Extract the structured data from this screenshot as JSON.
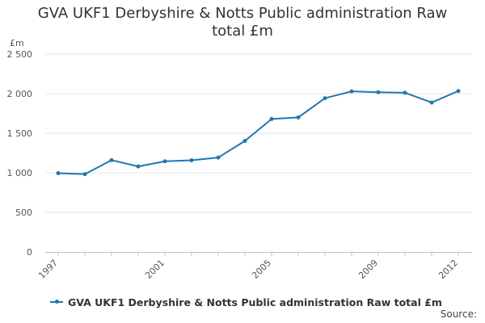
{
  "chart_data": {
    "type": "line",
    "title": "GVA UKF1 Derbyshire & Notts Public administration Raw total £m",
    "ylabel": "£m",
    "xlabel": "",
    "ylim": [
      0,
      2500
    ],
    "yticks": [
      {
        "value": 0,
        "label": "0"
      },
      {
        "value": 500,
        "label": "500"
      },
      {
        "value": 1000,
        "label": "1 000"
      },
      {
        "value": 1500,
        "label": "1 500"
      },
      {
        "value": 2000,
        "label": "2 000"
      },
      {
        "value": 2500,
        "label": "2 500"
      }
    ],
    "xticks": [
      "1997",
      "2001",
      "2005",
      "2009",
      "2012"
    ],
    "grid": "horizontal",
    "legend_position": "bottom",
    "series": [
      {
        "name": "GVA UKF1 Derbyshire & Notts Public administration Raw total £m",
        "color": "#1f77b4",
        "x": [
          1997,
          1998,
          1999,
          2000,
          2001,
          2002,
          2003,
          2004,
          2005,
          2006,
          2007,
          2008,
          2009,
          2010,
          2011,
          2012
        ],
        "values": [
          995,
          983,
          1160,
          1080,
          1145,
          1158,
          1193,
          1403,
          1680,
          1700,
          1943,
          2029,
          2018,
          2012,
          1888,
          2033
        ]
      }
    ]
  },
  "source_label": "Source:"
}
